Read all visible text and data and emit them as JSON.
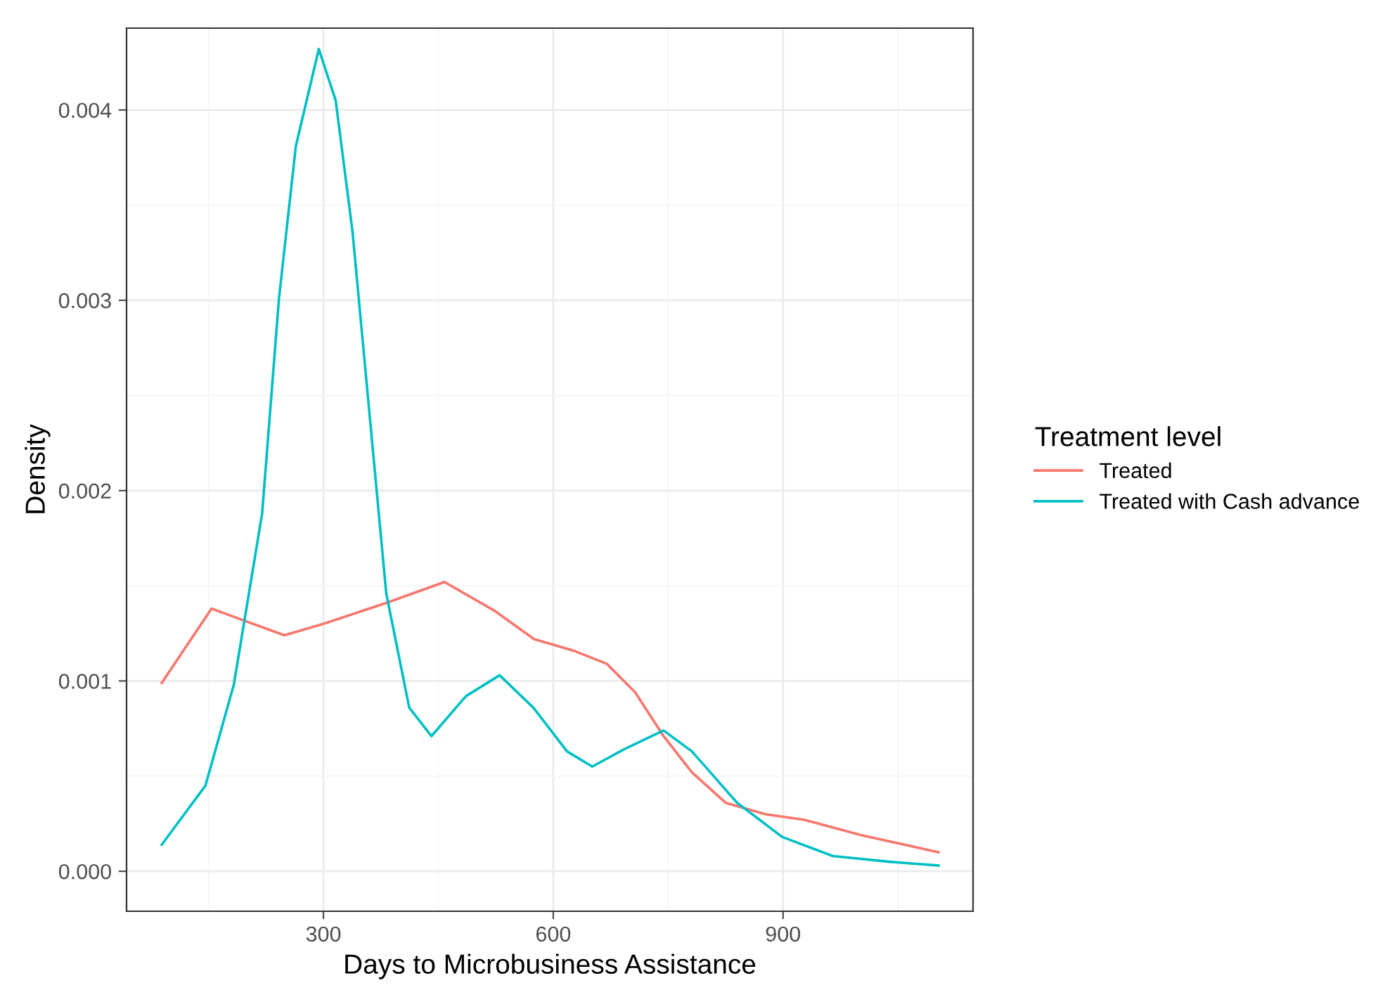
{
  "chart_data": {
    "type": "line",
    "xlabel": "Days to Microbusiness Assistance",
    "ylabel": "Density",
    "legend_title": "Treatment level",
    "legend": "right",
    "grid": true,
    "xlim": [
      43,
      1148
    ],
    "xticks": [
      300,
      600,
      900
    ],
    "ylim": [
      -0.00021,
      0.00443
    ],
    "yticks": [
      {
        "value": 0,
        "label": "0.000"
      },
      {
        "value": 0.001,
        "label": "0.001"
      },
      {
        "value": 0.002,
        "label": "0.002"
      },
      {
        "value": 0.003,
        "label": "0.003"
      },
      {
        "value": 0.004,
        "label": "0.004"
      }
    ],
    "series": [
      {
        "name": "Treated",
        "color": "#f8766d",
        "x": [
          89,
          154,
          249,
          300,
          382,
          458,
          523,
          575,
          626,
          670,
          707,
          744,
          781,
          825,
          877,
          928,
          1002,
          1103
        ],
        "values": [
          0.00099,
          0.00138,
          0.00124,
          0.0013,
          0.00141,
          0.00152,
          0.00137,
          0.00122,
          0.00116,
          0.00109,
          0.00094,
          0.00071,
          0.00052,
          0.00036,
          0.0003,
          0.00027,
          0.00019,
          0.0001
        ]
      },
      {
        "name": "Treated with Cash advance",
        "color": "#00bfc4",
        "x": [
          89,
          146,
          183,
          220,
          242,
          264,
          294,
          316,
          338,
          360,
          382,
          412,
          441,
          486,
          530,
          574,
          618,
          651,
          692,
          744,
          781,
          840,
          899,
          965,
          1039,
          1103
        ],
        "values": [
          0.00014,
          0.00045,
          0.00098,
          0.00188,
          0.00301,
          0.00381,
          0.00432,
          0.00405,
          0.00336,
          0.00241,
          0.00146,
          0.00086,
          0.00071,
          0.00092,
          0.00103,
          0.00086,
          0.00063,
          0.00055,
          0.00064,
          0.00074,
          0.00063,
          0.00036,
          0.00018,
          8e-05,
          5e-05,
          3e-05
        ]
      }
    ]
  }
}
